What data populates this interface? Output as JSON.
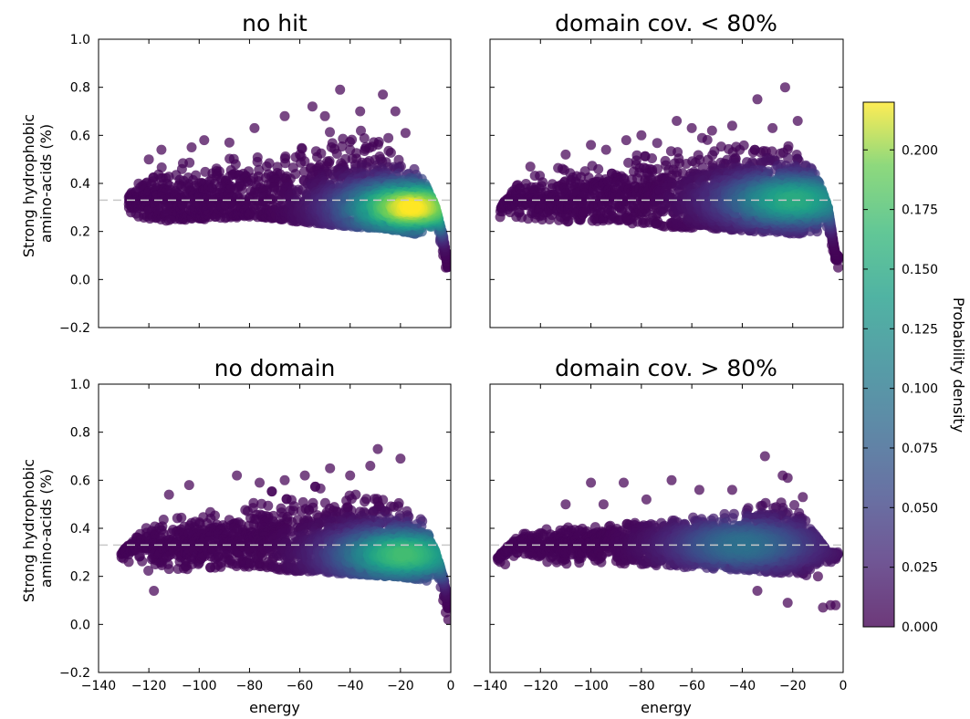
{
  "chart_data": {
    "type": "scatter",
    "layout": "2x2 grid with shared x and y axes and a shared colorbar",
    "xlabel": "energy",
    "ylabel": "Strong hydrophobic amino-acids (%)",
    "xlim": [
      -140,
      0
    ],
    "ylim": [
      -0.2,
      1.0
    ],
    "x_ticks": [
      "−140",
      "−120",
      "−100",
      "−80",
      "−60",
      "−40",
      "−20",
      "0"
    ],
    "y_ticks": [
      "−0.2",
      "0.0",
      "0.2",
      "0.4",
      "0.6",
      "0.8",
      "1.0"
    ],
    "reference_line": {
      "y": 0.33,
      "style": "dashed",
      "color": "#c8c8c8"
    },
    "colorbar": {
      "label": "Probability density",
      "colormap": "viridis",
      "range": [
        0.0,
        0.22
      ],
      "ticks": [
        "0.000",
        "0.025",
        "0.050",
        "0.075",
        "0.100",
        "0.125",
        "0.150",
        "0.175",
        "0.200"
      ]
    },
    "panels": [
      {
        "title": "no hit",
        "x_range": [
          -128,
          -1
        ],
        "density_peak": {
          "x": -16,
          "y": 0.3,
          "value": 0.22
        },
        "upper_envelope": [
          [
            -128,
            0.35
          ],
          [
            -120,
            0.48
          ],
          [
            -100,
            0.56
          ],
          [
            -80,
            0.6
          ],
          [
            -60,
            0.64
          ],
          [
            -45,
            0.7
          ],
          [
            -35,
            0.72
          ],
          [
            -28,
            0.72
          ],
          [
            -22,
            0.66
          ],
          [
            -15,
            0.52
          ],
          [
            -10,
            0.4
          ],
          [
            -6,
            0.3
          ],
          [
            -3,
            0.18
          ],
          [
            -1,
            0.05
          ]
        ],
        "lower_envelope": [
          [
            -128,
            0.28
          ],
          [
            -120,
            0.24
          ],
          [
            -100,
            0.25
          ],
          [
            -80,
            0.26
          ],
          [
            -60,
            0.24
          ],
          [
            -40,
            0.22
          ],
          [
            -25,
            0.21
          ],
          [
            -15,
            0.19
          ],
          [
            -10,
            0.18
          ],
          [
            -6,
            0.14
          ],
          [
            -3,
            0.06
          ],
          [
            -1,
            0.03
          ]
        ],
        "outliers": [
          [
            -44,
            0.79
          ],
          [
            -27,
            0.77
          ],
          [
            -55,
            0.72
          ],
          [
            -98,
            0.58
          ],
          [
            -115,
            0.54
          ],
          [
            -120,
            0.5
          ],
          [
            -103,
            0.55
          ],
          [
            -88,
            0.57
          ],
          [
            -78,
            0.63
          ],
          [
            -66,
            0.68
          ],
          [
            -50,
            0.68
          ],
          [
            -36,
            0.7
          ],
          [
            -22,
            0.7
          ],
          [
            -125,
            0.34
          ],
          [
            -122,
            0.27
          ],
          [
            -118,
            0.36
          ],
          [
            -110,
            0.26
          ],
          [
            -104,
            0.31
          ],
          [
            -96,
            0.26
          ],
          [
            -18,
            0.61
          ],
          [
            -2,
            0.05
          ],
          [
            -3,
            0.1
          ]
        ]
      },
      {
        "title": "domain cov. < 80%",
        "x_range": [
          -136,
          -2
        ],
        "density_peak": {
          "x": -20,
          "y": 0.33,
          "value": 0.15
        },
        "upper_envelope": [
          [
            -136,
            0.3
          ],
          [
            -128,
            0.42
          ],
          [
            -110,
            0.48
          ],
          [
            -90,
            0.54
          ],
          [
            -70,
            0.58
          ],
          [
            -55,
            0.61
          ],
          [
            -40,
            0.62
          ],
          [
            -30,
            0.62
          ],
          [
            -22,
            0.62
          ],
          [
            -15,
            0.52
          ],
          [
            -10,
            0.42
          ],
          [
            -6,
            0.3
          ],
          [
            -3,
            0.1
          ]
        ],
        "lower_envelope": [
          [
            -136,
            0.26
          ],
          [
            -128,
            0.25
          ],
          [
            -110,
            0.24
          ],
          [
            -90,
            0.24
          ],
          [
            -70,
            0.22
          ],
          [
            -50,
            0.21
          ],
          [
            -35,
            0.2
          ],
          [
            -20,
            0.19
          ],
          [
            -10,
            0.18
          ],
          [
            -6,
            0.14
          ],
          [
            -3,
            0.06
          ]
        ],
        "outliers": [
          [
            -136,
            0.26
          ],
          [
            -23,
            0.8
          ],
          [
            -34,
            0.75
          ],
          [
            -66,
            0.66
          ],
          [
            -18,
            0.66
          ],
          [
            -100,
            0.56
          ],
          [
            -110,
            0.52
          ],
          [
            -124,
            0.47
          ],
          [
            -80,
            0.6
          ],
          [
            -52,
            0.62
          ],
          [
            -60,
            0.63
          ],
          [
            -44,
            0.64
          ],
          [
            -28,
            0.63
          ],
          [
            -132,
            0.28
          ],
          [
            -2,
            0.05
          ],
          [
            -4,
            0.12
          ],
          [
            -86,
            0.58
          ],
          [
            -94,
            0.54
          ]
        ]
      },
      {
        "title": "no domain",
        "x_range": [
          -131,
          -1
        ],
        "density_peak": {
          "x": -19,
          "y": 0.29,
          "value": 0.17
        },
        "upper_envelope": [
          [
            -131,
            0.3
          ],
          [
            -120,
            0.42
          ],
          [
            -100,
            0.48
          ],
          [
            -80,
            0.54
          ],
          [
            -60,
            0.58
          ],
          [
            -45,
            0.62
          ],
          [
            -35,
            0.64
          ],
          [
            -28,
            0.68
          ],
          [
            -22,
            0.62
          ],
          [
            -15,
            0.52
          ],
          [
            -10,
            0.4
          ],
          [
            -6,
            0.3
          ],
          [
            -3,
            0.2
          ],
          [
            -1,
            0.08
          ]
        ],
        "lower_envelope": [
          [
            -131,
            0.25
          ],
          [
            -120,
            0.22
          ],
          [
            -100,
            0.23
          ],
          [
            -80,
            0.24
          ],
          [
            -60,
            0.22
          ],
          [
            -40,
            0.21
          ],
          [
            -25,
            0.2
          ],
          [
            -15,
            0.19
          ],
          [
            -10,
            0.18
          ],
          [
            -6,
            0.14
          ],
          [
            -3,
            0.08
          ],
          [
            -1,
            0.03
          ]
        ],
        "outliers": [
          [
            -29,
            0.73
          ],
          [
            -20,
            0.69
          ],
          [
            -48,
            0.65
          ],
          [
            -85,
            0.62
          ],
          [
            -104,
            0.58
          ],
          [
            -112,
            0.54
          ],
          [
            -118,
            0.14
          ],
          [
            -130,
            0.3
          ],
          [
            -128,
            0.26
          ],
          [
            -58,
            0.62
          ],
          [
            -66,
            0.6
          ],
          [
            -76,
            0.59
          ],
          [
            -40,
            0.62
          ],
          [
            -32,
            0.66
          ],
          [
            -2,
            0.05
          ],
          [
            -3,
            0.1
          ],
          [
            -1,
            0.02
          ]
        ]
      },
      {
        "title": "domain cov. > 80%",
        "x_range": [
          -137,
          -2
        ],
        "density_peak": {
          "x": -40,
          "y": 0.33,
          "value": 0.09
        },
        "upper_envelope": [
          [
            -137,
            0.28
          ],
          [
            -128,
            0.38
          ],
          [
            -110,
            0.41
          ],
          [
            -90,
            0.42
          ],
          [
            -70,
            0.44
          ],
          [
            -50,
            0.45
          ],
          [
            -35,
            0.5
          ],
          [
            -25,
            0.56
          ],
          [
            -20,
            0.52
          ],
          [
            -15,
            0.44
          ],
          [
            -10,
            0.36
          ],
          [
            -6,
            0.3
          ]
        ],
        "lower_envelope": [
          [
            -137,
            0.25
          ],
          [
            -128,
            0.26
          ],
          [
            -110,
            0.25
          ],
          [
            -90,
            0.25
          ],
          [
            -70,
            0.24
          ],
          [
            -50,
            0.23
          ],
          [
            -35,
            0.22
          ],
          [
            -25,
            0.21
          ],
          [
            -15,
            0.2
          ],
          [
            -10,
            0.2
          ],
          [
            -6,
            0.22
          ]
        ],
        "outliers": [
          [
            -31,
            0.7
          ],
          [
            -100,
            0.59
          ],
          [
            -87,
            0.59
          ],
          [
            -68,
            0.6
          ],
          [
            -24,
            0.62
          ],
          [
            -22,
            0.61
          ],
          [
            -57,
            0.56
          ],
          [
            -44,
            0.56
          ],
          [
            -110,
            0.5
          ],
          [
            -95,
            0.5
          ],
          [
            -78,
            0.52
          ],
          [
            -34,
            0.14
          ],
          [
            -22,
            0.09
          ],
          [
            -8,
            0.07
          ],
          [
            -5,
            0.08
          ],
          [
            -3,
            0.08
          ],
          [
            -136,
            0.26
          ],
          [
            -134,
            0.25
          ],
          [
            -10,
            0.2
          ],
          [
            -16,
            0.53
          ]
        ]
      }
    ]
  }
}
